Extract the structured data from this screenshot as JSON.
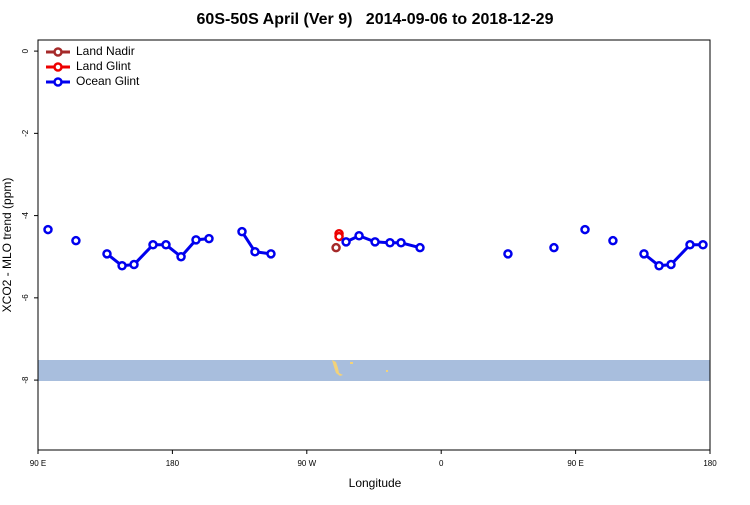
{
  "chart_data": {
    "type": "line",
    "title": "60S-50S April (Ver 9)   2014-09-06 to 2018-12-29",
    "xlabel": "Longitude",
    "ylabel": "XCO2 - MLO trend (ppm)",
    "xlim": [
      90,
      540
    ],
    "ylim": [
      -9.7,
      0.27
    ],
    "xticks": [
      {
        "value": 90,
        "label": "90 E"
      },
      180,
      {
        "value": 270,
        "label": "90 W"
      },
      {
        "value": 360,
        "label": "0"
      },
      {
        "value": 450,
        "label": "90 E"
      },
      {
        "value": 540,
        "label": "180"
      }
    ],
    "yticks": [
      0,
      -2,
      -4,
      -6,
      -8
    ],
    "legend": "top-left",
    "series": [
      {
        "name": "Land Nadir",
        "color": "#a52a2a",
        "x": [
          289.6
        ],
        "values": [
          -4.78
        ]
      },
      {
        "name": "Land Glint",
        "color": "#ee0000",
        "x": [
          291.6,
          291.6
        ],
        "values": [
          -4.44,
          -4.51
        ]
      },
      {
        "name": "Ocean Glint",
        "color": "#0000ee",
        "x": [
          96.7,
          null,
          115.4,
          null,
          136.2,
          146.3,
          154.3,
          167.0,
          175.7,
          185.8,
          195.8,
          204.5,
          null,
          226.6,
          235.3,
          246.0,
          null,
          296.3,
          305.0,
          315.7,
          325.7,
          333.1,
          345.8,
          null,
          404.7,
          null,
          435.5,
          null,
          456.3,
          null,
          475.0,
          null,
          495.8,
          505.9,
          513.9,
          526.6,
          535.3
        ],
        "values": [
          -4.34,
          null,
          -4.61,
          null,
          -4.93,
          -5.22,
          -5.19,
          -4.71,
          -4.71,
          -5.0,
          -4.59,
          -4.56,
          null,
          -4.39,
          -4.88,
          -4.93,
          null,
          -4.64,
          -4.49,
          -4.64,
          -4.66,
          -4.66,
          -4.78,
          null,
          -4.93,
          null,
          -4.78,
          null,
          -4.34,
          null,
          -4.61,
          null,
          -4.93,
          -5.22,
          -5.19,
          -4.71,
          -4.71
        ]
      }
    ]
  }
}
